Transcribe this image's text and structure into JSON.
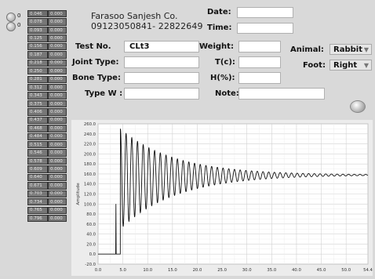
{
  "left_controls": [
    {
      "index": "0"
    },
    {
      "index": "0"
    }
  ],
  "data_table": {
    "rows": [
      [
        "0.046",
        "0.000"
      ],
      [
        "0.078",
        "0.000"
      ],
      [
        "0.093",
        "0.000"
      ],
      [
        "0.125",
        "0.000"
      ],
      [
        "0.156",
        "0.000"
      ],
      [
        "0.187",
        "0.000"
      ],
      [
        "0.218",
        "0.000"
      ],
      [
        "0.250",
        "0.000"
      ],
      [
        "0.281",
        "0.000"
      ],
      [
        "0.312",
        "0.000"
      ],
      [
        "0.343",
        "0.000"
      ],
      [
        "0.375",
        "0.000"
      ],
      [
        "0.406",
        "0.000"
      ],
      [
        "0.437",
        "0.000"
      ],
      [
        "0.468",
        "0.000"
      ],
      [
        "0.484",
        "0.000"
      ],
      [
        "0.515",
        "0.000"
      ],
      [
        "0.546",
        "0.000"
      ],
      [
        "0.578",
        "0.000"
      ],
      [
        "0.609",
        "0.000"
      ],
      [
        "0.640",
        "0.000"
      ],
      [
        "0.671",
        "0.000"
      ],
      [
        "0.703",
        "0.000"
      ],
      [
        "0.734",
        "0.000"
      ],
      [
        "0.765",
        "0.000"
      ],
      [
        "0.796",
        "0.000"
      ]
    ]
  },
  "company": {
    "name": "Farasoo Sanjesh Co.",
    "phone": "09123050841- 22822649"
  },
  "labels": {
    "date": "Date:",
    "time": "Time:",
    "test_no": "Test No.",
    "weight": "Weight:",
    "joint_type": "Joint Type:",
    "tc": "T(c):",
    "bone_type": "Bone Type:",
    "h": "H(%):",
    "type_w": "Type  W :",
    "note": "Note:",
    "animal": "Animal:",
    "foot": "Foot:"
  },
  "fields": {
    "date": "",
    "time": "",
    "test_no": "CLt3",
    "weight": "",
    "joint_type": "",
    "tc": "",
    "bone_type": "",
    "h": "",
    "type_w": "",
    "note": ""
  },
  "dropdowns": {
    "animal": "Rabbit",
    "foot": "Right"
  },
  "chart_data": {
    "type": "line",
    "ylabel": "Amplitude",
    "xlim": [
      0,
      54.4
    ],
    "ylim": [
      -20,
      260
    ],
    "x_ticks": [
      "0.0",
      "5.0",
      "10.0",
      "15.0",
      "20.0",
      "25.0",
      "30.0",
      "35.0",
      "40.0",
      "45.0",
      "50.0",
      "54.4"
    ],
    "y_ticks": [
      "-20.0",
      "0.0",
      "20.0",
      "40.0",
      "60.0",
      "80.0",
      "100.0",
      "120.0",
      "140.0",
      "160.0",
      "180.0",
      "200.0",
      "220.0",
      "240.0",
      "260.0"
    ],
    "grid": true,
    "series": [
      {
        "description": "damped oscillation",
        "baseline_before": 0,
        "pre_spike": {
          "x": 3.6,
          "y": 100
        },
        "start_x": 4.5,
        "oscillation_center": 150,
        "initial_amplitude": 100,
        "period": 1.15,
        "decay_until_x": 40,
        "final_value": 158,
        "end_x": 54.4
      }
    ]
  }
}
